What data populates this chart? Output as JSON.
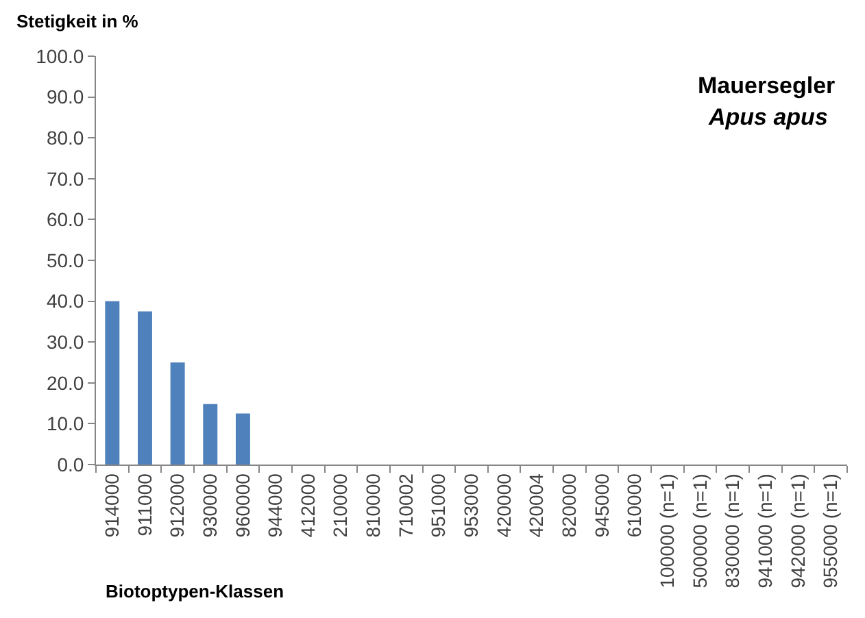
{
  "chart_data": {
    "type": "bar",
    "title": "Mauersegler",
    "subtitle": "Apus apus",
    "ylabel": "Stetigkeit in %",
    "xlabel": "Biotoptypen-Klassen",
    "categories": [
      "914000",
      "911000",
      "912000",
      "930000",
      "960000",
      "944000",
      "412000",
      "210000",
      "810000",
      "710002",
      "951000",
      "953000",
      "420000",
      "420004",
      "820000",
      "945000",
      "610000",
      "100000 (n=1)",
      "500000 (n=1)",
      "830000 (n=1)",
      "941000 (n=1)",
      "942000 (n=1)",
      "955000 (n=1)"
    ],
    "values": [
      40.0,
      37.5,
      25.0,
      14.8,
      12.5,
      0,
      0,
      0,
      0,
      0,
      0,
      0,
      0,
      0,
      0,
      0,
      0,
      0,
      0,
      0,
      0,
      0,
      0
    ],
    "color": "#4f81bd",
    "ylim": [
      0,
      100
    ],
    "yticks": [
      {
        "value": 0,
        "label": "0.0"
      },
      {
        "value": 10,
        "label": "10.0"
      },
      {
        "value": 20,
        "label": "20.0"
      },
      {
        "value": 30,
        "label": "30.0"
      },
      {
        "value": 40,
        "label": "40.0"
      },
      {
        "value": 50,
        "label": "50.0"
      },
      {
        "value": 60,
        "label": "60.0"
      },
      {
        "value": 70,
        "label": "70.0"
      },
      {
        "value": 80,
        "label": "80.0"
      },
      {
        "value": 90,
        "label": "90.0"
      },
      {
        "value": 100,
        "label": "100.0"
      }
    ],
    "grid": false
  }
}
